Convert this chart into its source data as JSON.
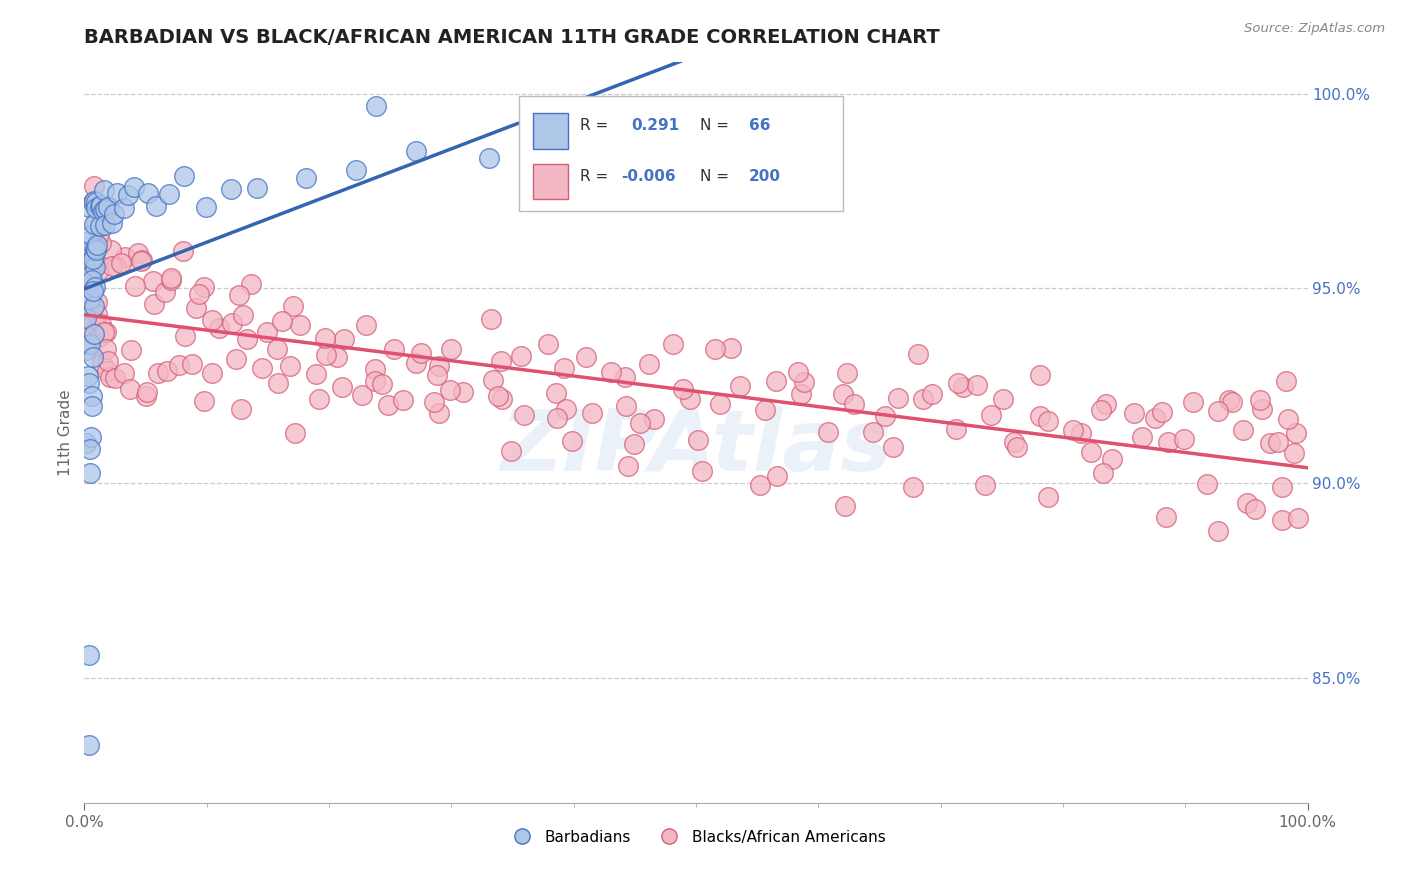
{
  "title": "BARBADIAN VS BLACK/AFRICAN AMERICAN 11TH GRADE CORRELATION CHART",
  "source": "Source: ZipAtlas.com",
  "ylabel": "11th Grade",
  "right_ytick_vals": [
    1.0,
    0.95,
    0.9,
    0.85
  ],
  "right_ytick_labels": [
    "100.0%",
    "95.0%",
    "90.0%",
    "85.0%"
  ],
  "legend_r1_val": "0.291",
  "legend_n1_val": "66",
  "legend_r2_val": "-0.006",
  "legend_n2_val": "200",
  "blue_color": "#aec6e8",
  "blue_edge_color": "#4472c4",
  "pink_color": "#f4b8c4",
  "pink_edge_color": "#d45f7a",
  "pink_line_color": "#e05070",
  "blue_line_color": "#3465b0",
  "legend_label1": "Barbadians",
  "legend_label2": "Blacks/African Americans",
  "watermark": "ZIPAtlas",
  "xmin": 0.0,
  "xmax": 1.0,
  "ymin": 0.818,
  "ymax": 1.008,
  "blue_x": [
    0.002,
    0.003,
    0.003,
    0.003,
    0.004,
    0.004,
    0.004,
    0.004,
    0.004,
    0.005,
    0.005,
    0.005,
    0.005,
    0.005,
    0.005,
    0.006,
    0.006,
    0.006,
    0.006,
    0.006,
    0.007,
    0.007,
    0.007,
    0.007,
    0.008,
    0.008,
    0.008,
    0.009,
    0.009,
    0.01,
    0.01,
    0.01,
    0.011,
    0.011,
    0.012,
    0.013,
    0.014,
    0.015,
    0.016,
    0.017,
    0.018,
    0.019,
    0.02,
    0.022,
    0.024,
    0.027,
    0.03,
    0.035,
    0.04,
    0.05,
    0.06,
    0.07,
    0.08,
    0.1,
    0.12,
    0.14,
    0.18,
    0.22,
    0.27,
    0.33,
    0.39,
    0.45,
    0.52,
    0.24,
    0.002,
    0.003
  ],
  "blue_y": [
    0.934,
    0.96,
    0.93,
    0.91,
    0.97,
    0.955,
    0.94,
    0.928,
    0.916,
    0.96,
    0.948,
    0.936,
    0.924,
    0.912,
    0.9,
    0.965,
    0.955,
    0.944,
    0.933,
    0.922,
    0.968,
    0.958,
    0.948,
    0.938,
    0.97,
    0.96,
    0.95,
    0.97,
    0.961,
    0.97,
    0.962,
    0.952,
    0.97,
    0.962,
    0.97,
    0.97,
    0.97,
    0.97,
    0.97,
    0.97,
    0.97,
    0.97,
    0.97,
    0.97,
    0.97,
    0.972,
    0.972,
    0.973,
    0.974,
    0.974,
    0.974,
    0.975,
    0.975,
    0.975,
    0.976,
    0.977,
    0.978,
    0.979,
    0.982,
    0.984,
    0.987,
    0.99,
    0.993,
    0.998,
    0.858,
    0.835
  ],
  "pink_x": [
    0.003,
    0.004,
    0.004,
    0.005,
    0.005,
    0.005,
    0.006,
    0.006,
    0.007,
    0.007,
    0.008,
    0.009,
    0.01,
    0.011,
    0.012,
    0.013,
    0.015,
    0.016,
    0.018,
    0.02,
    0.022,
    0.025,
    0.028,
    0.032,
    0.036,
    0.04,
    0.046,
    0.052,
    0.06,
    0.068,
    0.077,
    0.086,
    0.096,
    0.107,
    0.119,
    0.131,
    0.145,
    0.159,
    0.175,
    0.192,
    0.209,
    0.227,
    0.247,
    0.267,
    0.289,
    0.311,
    0.335,
    0.359,
    0.385,
    0.411,
    0.439,
    0.467,
    0.497,
    0.527,
    0.558,
    0.589,
    0.621,
    0.653,
    0.685,
    0.718,
    0.75,
    0.782,
    0.814,
    0.845,
    0.876,
    0.907,
    0.937,
    0.963,
    0.98,
    0.992,
    0.05,
    0.08,
    0.11,
    0.15,
    0.19,
    0.24,
    0.29,
    0.34,
    0.39,
    0.44,
    0.49,
    0.54,
    0.59,
    0.64,
    0.69,
    0.74,
    0.79,
    0.84,
    0.89,
    0.94,
    0.97,
    0.99,
    0.03,
    0.06,
    0.1,
    0.14,
    0.18,
    0.23,
    0.28,
    0.33,
    0.38,
    0.43,
    0.48,
    0.53,
    0.58,
    0.63,
    0.68,
    0.73,
    0.78,
    0.83,
    0.88,
    0.93,
    0.96,
    0.985,
    0.02,
    0.05,
    0.085,
    0.125,
    0.165,
    0.21,
    0.255,
    0.305,
    0.355,
    0.41,
    0.46,
    0.515,
    0.565,
    0.615,
    0.665,
    0.715,
    0.76,
    0.81,
    0.855,
    0.9,
    0.945,
    0.975,
    0.01,
    0.025,
    0.045,
    0.07,
    0.1,
    0.135,
    0.172,
    0.213,
    0.257,
    0.303,
    0.351,
    0.401,
    0.453,
    0.505,
    0.557,
    0.609,
    0.662,
    0.715,
    0.767,
    0.819,
    0.869,
    0.917,
    0.954,
    0.977,
    0.007,
    0.015,
    0.028,
    0.045,
    0.065,
    0.09,
    0.12,
    0.155,
    0.195,
    0.24,
    0.288,
    0.34,
    0.394,
    0.45,
    0.507,
    0.564,
    0.621,
    0.678,
    0.733,
    0.786,
    0.836,
    0.882,
    0.923,
    0.957,
    0.98,
    0.994,
    0.008,
    0.018,
    0.032,
    0.05,
    0.072,
    0.098,
    0.128,
    0.163,
    0.202,
    0.244,
    0.289,
    0.337,
    0.387,
    0.439
  ],
  "pink_y": [
    0.96,
    0.955,
    0.945,
    0.958,
    0.948,
    0.938,
    0.955,
    0.945,
    0.953,
    0.943,
    0.951,
    0.948,
    0.945,
    0.943,
    0.941,
    0.938,
    0.935,
    0.932,
    0.93,
    0.928,
    0.938,
    0.935,
    0.932,
    0.93,
    0.928,
    0.926,
    0.93,
    0.928,
    0.93,
    0.926,
    0.932,
    0.928,
    0.925,
    0.928,
    0.925,
    0.923,
    0.928,
    0.925,
    0.922,
    0.924,
    0.928,
    0.922,
    0.925,
    0.928,
    0.92,
    0.922,
    0.925,
    0.922,
    0.92,
    0.922,
    0.925,
    0.92,
    0.923,
    0.92,
    0.922,
    0.92,
    0.922,
    0.92,
    0.918,
    0.92,
    0.922,
    0.918,
    0.92,
    0.922,
    0.918,
    0.92,
    0.922,
    0.918,
    0.92,
    0.915,
    0.948,
    0.943,
    0.94,
    0.935,
    0.935,
    0.932,
    0.93,
    0.928,
    0.928,
    0.926,
    0.925,
    0.923,
    0.922,
    0.92,
    0.92,
    0.918,
    0.918,
    0.916,
    0.916,
    0.914,
    0.913,
    0.912,
    0.96,
    0.955,
    0.95,
    0.945,
    0.943,
    0.94,
    0.938,
    0.936,
    0.935,
    0.933,
    0.932,
    0.93,
    0.928,
    0.927,
    0.926,
    0.924,
    0.923,
    0.921,
    0.92,
    0.918,
    0.917,
    0.916,
    0.965,
    0.958,
    0.953,
    0.948,
    0.945,
    0.942,
    0.94,
    0.937,
    0.934,
    0.932,
    0.93,
    0.928,
    0.926,
    0.924,
    0.922,
    0.92,
    0.918,
    0.916,
    0.914,
    0.912,
    0.91,
    0.909,
    0.958,
    0.953,
    0.948,
    0.943,
    0.938,
    0.933,
    0.93,
    0.927,
    0.924,
    0.921,
    0.918,
    0.916,
    0.914,
    0.912,
    0.91,
    0.908,
    0.907,
    0.906,
    0.905,
    0.904,
    0.903,
    0.902,
    0.901,
    0.9,
    0.97,
    0.965,
    0.96,
    0.955,
    0.95,
    0.945,
    0.94,
    0.935,
    0.93,
    0.926,
    0.922,
    0.918,
    0.914,
    0.91,
    0.907,
    0.904,
    0.901,
    0.9,
    0.898,
    0.897,
    0.895,
    0.893,
    0.892,
    0.891,
    0.89,
    0.889,
    0.975,
    0.97,
    0.965,
    0.96,
    0.955,
    0.95,
    0.945,
    0.94,
    0.935,
    0.93,
    0.925,
    0.92,
    0.915,
    0.91
  ]
}
